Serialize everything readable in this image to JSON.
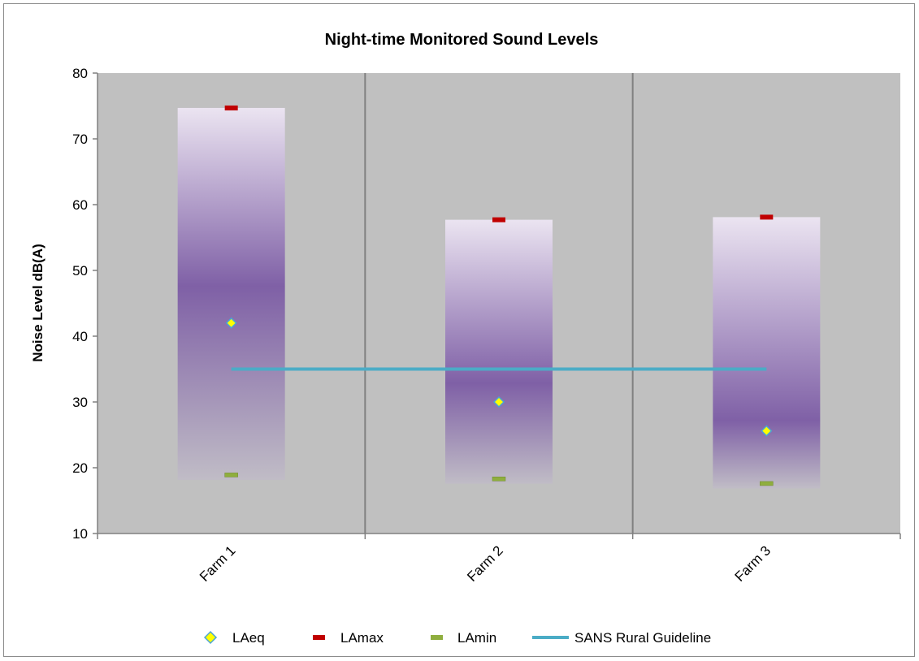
{
  "chart_data": {
    "type": "bar",
    "title": "Night-time Monitored Sound Levels",
    "xlabel": "",
    "ylabel": "Noise Level dB(A)",
    "ylim": [
      10,
      80
    ],
    "yticks": [
      10,
      20,
      30,
      40,
      50,
      60,
      70,
      80
    ],
    "categories": [
      "Farm 1",
      "Farm 2",
      "Farm 3"
    ],
    "series": [
      {
        "name": "LAeq",
        "marker": "diamond",
        "values": [
          42,
          30,
          25.6
        ]
      },
      {
        "name": "LAmax",
        "marker": "dash",
        "values": [
          74.7,
          57.7,
          58.1
        ]
      },
      {
        "name": "LAmin",
        "marker": "dash",
        "values": [
          18.9,
          18.3,
          17.6
        ]
      },
      {
        "name": "SANS Rural Guideline",
        "marker": "line",
        "values": [
          35,
          35,
          35
        ]
      }
    ],
    "range_bars": {
      "low": "LAmin",
      "high": "LAmax"
    },
    "grid": {
      "vertical": true,
      "horizontal": false
    },
    "legend_position": "bottom",
    "colors": {
      "plot_background": "#c0c0c0",
      "bar_light": "#ebe4f1",
      "bar_dark": "#7f60a6",
      "laeq_fill": "#ffff00",
      "laeq_edge": "#4aa3d6",
      "lamax": "#c00000",
      "lamin": "#8fae3e",
      "guideline": "#4bacc6"
    }
  }
}
